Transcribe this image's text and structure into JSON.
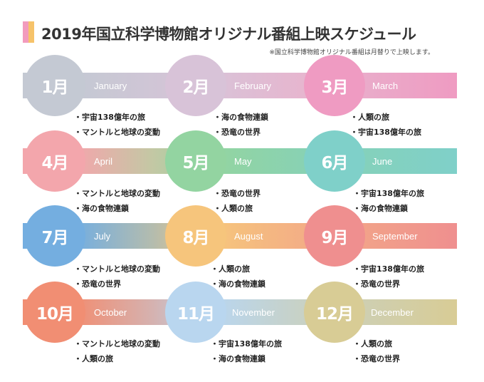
{
  "header": {
    "title": "2019年国立科学博物館オリジナル番組上映スケジュール",
    "note": "※国立科学博物館オリジナル番組は月替りで上映します。"
  },
  "colors": {
    "jan": "#c4c9d3",
    "feb": "#d8c3d8",
    "mar": "#ef9bc2",
    "apr": "#f3a6ac",
    "may": "#93d4a1",
    "jun": "#7fd0c9",
    "jul": "#74aee0",
    "aug": "#f6c57c",
    "sep": "#ef8f8f",
    "oct": "#f18e73",
    "nov": "#b9d6ef",
    "dec": "#d8cc95"
  },
  "months": [
    {
      "label": "1月",
      "english": "January",
      "programs": [
        "・宇宙138億年の旅",
        "・マントルと地球の変動"
      ]
    },
    {
      "label": "2月",
      "english": "February",
      "programs": [
        "・海の食物連鎖",
        "・恐竜の世界"
      ]
    },
    {
      "label": "3月",
      "english": "March",
      "programs": [
        "・人類の旅",
        "・宇宙138億年の旅"
      ]
    },
    {
      "label": "4月",
      "english": "April",
      "programs": [
        "・マントルと地球の変動",
        "・海の食物連鎖"
      ]
    },
    {
      "label": "5月",
      "english": "May",
      "programs": [
        "・恐竜の世界",
        "・人類の旅"
      ]
    },
    {
      "label": "6月",
      "english": "June",
      "programs": [
        "・宇宙138億年の旅",
        "・海の食物連鎖"
      ]
    },
    {
      "label": "7月",
      "english": "July",
      "programs": [
        "・マントルと地球の変動",
        "・恐竜の世界"
      ]
    },
    {
      "label": "8月",
      "english": "August",
      "programs": [
        "・人類の旅",
        "・海の食物連鎖"
      ]
    },
    {
      "label": "9月",
      "english": "September",
      "programs": [
        "・宇宙138億年の旅",
        "・恐竜の世界"
      ]
    },
    {
      "label": "10月",
      "english": "October",
      "programs": [
        "・マントルと地球の変動",
        "・人類の旅"
      ]
    },
    {
      "label": "11月",
      "english": "November",
      "programs": [
        "・宇宙138億年の旅",
        "・海の食物連鎖"
      ]
    },
    {
      "label": "12月",
      "english": "December",
      "programs": [
        "・人類の旅",
        "・恐竜の世界"
      ]
    }
  ]
}
